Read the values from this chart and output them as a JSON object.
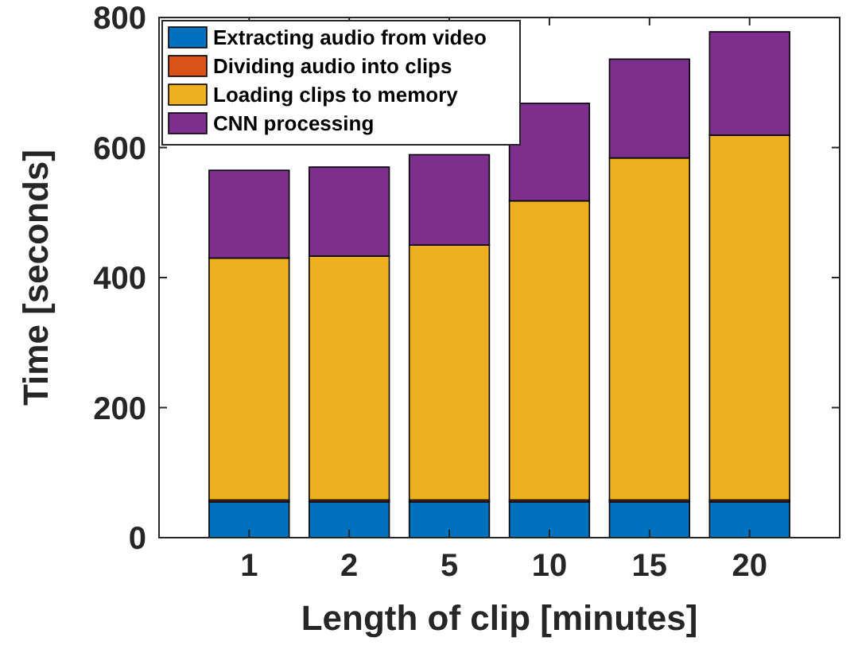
{
  "chart_data": {
    "type": "bar",
    "stacked": true,
    "xlabel": "Length of clip [minutes]",
    "ylabel": "Time [seconds]",
    "categories": [
      "1",
      "2",
      "5",
      "10",
      "15",
      "20"
    ],
    "series": [
      {
        "name": "Extracting audio from video",
        "color": "#0072bd",
        "values": [
          55,
          55,
          55,
          55,
          55,
          55
        ]
      },
      {
        "name": "Dividing audio into clips",
        "color": "#d95319",
        "values": [
          3,
          3,
          3,
          3,
          3,
          3
        ]
      },
      {
        "name": "Loading clips to memory",
        "color": "#edb120",
        "values": [
          372,
          375,
          392,
          460,
          526,
          561
        ]
      },
      {
        "name": "CNN processing",
        "color": "#7e2f8e",
        "values": [
          135,
          137,
          139,
          150,
          152,
          159
        ]
      }
    ],
    "ylim": [
      0,
      800
    ],
    "yticks": [
      0,
      200,
      400,
      600,
      800
    ],
    "grid": false,
    "legend": "top left"
  }
}
